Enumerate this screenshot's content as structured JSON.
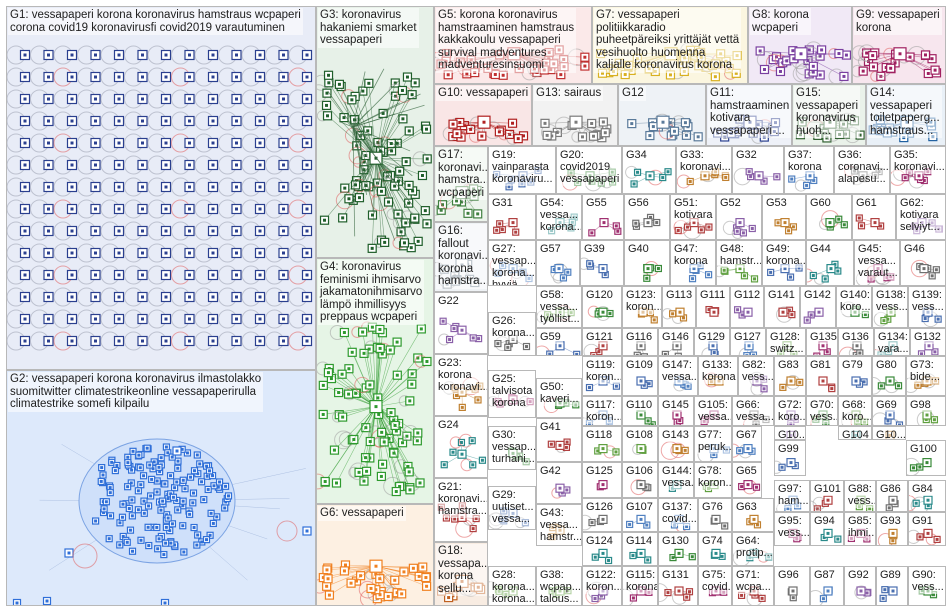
{
  "graph": {
    "background": "#ffffff",
    "box_border": "#b8b8b8",
    "edge_color": "#8a8a8a",
    "self_loop_color": "#e06060",
    "groups": [
      {
        "id": "G1",
        "label": "G1: vessapaperi korona koronavirus hamstraus wcpaperi\ncorona covid19 koronavirusfi covid2019 varautuminen",
        "color": "#2a3f8f",
        "tint": "#e8ecf7"
      },
      {
        "id": "G2",
        "label": "G2: vessapaperi korona koronavirus ilmastolakko\nsuomitwitter climatestrikeonline vessapaperirulla\nclimatestrike somefi kilpailu",
        "color": "#2f6fd8",
        "tint": "#dde9fb"
      },
      {
        "id": "G3",
        "label": "G3: koronavirus\nhakaniemi smarket\nvessapaperi",
        "color": "#1f5e2a",
        "tint": "#e7f1e8"
      },
      {
        "id": "G4",
        "label": "G4: koronavirus\nfeminismi ihmisarvo\njakamatonihmisarvo\nlämpö ihmillisyys\npreppaus wcpaperi",
        "color": "#2e9a2e",
        "tint": "#e6f5e6"
      },
      {
        "id": "G5",
        "label": "G5: korona koronavirus\nhamstraaminen hamstraus\nkakkakoulu vessapaperi\nsurvival madventures\nmadventuresinsuomi",
        "color": "#c03030",
        "tint": "#fbe9e9"
      },
      {
        "id": "G6",
        "label": "G6: vessapaperi",
        "color": "#f08020",
        "tint": "#fdf0e2"
      },
      {
        "id": "G7",
        "label": "G7: vessapaperi\npolitiikkaradio\npuheetpäreiksi yrittäjät vettä\nvesihuolto huomenna\nkaljalle koronavirus korona",
        "color": "#d8b020",
        "tint": "#fbf6e0"
      },
      {
        "id": "G8",
        "label": "G8: korona\nwcpaperi",
        "color": "#7a3fa0",
        "tint": "#f1e9f6"
      },
      {
        "id": "G9",
        "label": "G9: vessapaperi\nkorona",
        "color": "#a02060",
        "tint": "#f7e6ee"
      },
      {
        "id": "G10",
        "label": "G10: vessapaperi",
        "color": "#b02020",
        "tint": "#f9e6e6"
      },
      {
        "id": "G11",
        "label": "G11:\nhamstraaminen\nkotivara\nvessapaperi ...",
        "color": "#2a3f8f",
        "tint": "#eef1f8"
      },
      {
        "id": "G12",
        "label": "G12",
        "color": "#5a7a9a",
        "tint": "#eef2f6"
      },
      {
        "id": "G13",
        "label": "G13: sairaus",
        "color": "#7a7a7a",
        "tint": "#f2f2f2"
      },
      {
        "id": "G14",
        "label": "G14:\nvessapaperi\ntoiletpaperg...\nhamstraus...",
        "color": "#2060a0",
        "tint": "#e9f0f7"
      },
      {
        "id": "G15",
        "label": "G15:\nvessapaperi\nkoronavirus\nhuoh...",
        "color": "#306030",
        "tint": "#eaf2ea"
      },
      {
        "id": "G16",
        "label": "G16:\nfallout\nkoronavi...\nkorona\nhamstra...",
        "color": "#708090",
        "tint": "#eff2f5"
      },
      {
        "id": "G17",
        "label": "G17:\nkoronavi...\nhamstra...\nwcpaperi",
        "color": "#408040",
        "tint": "#ecf4ec"
      },
      {
        "id": "G18",
        "label": "G18:\nvessapa...\nkorona\nsellu...",
        "color": "#c06020",
        "tint": "#f8ece2"
      }
    ],
    "cells": [
      {
        "id": "G19",
        "label": "G19:\nvainparasta\nkoronaviru..."
      },
      {
        "id": "G20",
        "label": "G20:\ncovid2019\nvessapaperi"
      },
      {
        "id": "G21",
        "label": "G21:\nkoronavi...\nhamstra..."
      },
      {
        "id": "G22",
        "label": "G22"
      },
      {
        "id": "G23",
        "label": "G23:\nkorona\nkoronavi..."
      },
      {
        "id": "G24",
        "label": "G24"
      },
      {
        "id": "G25",
        "label": "G25:\ntalvisota\nkorona"
      },
      {
        "id": "G26",
        "label": "G26:\nkorona..."
      },
      {
        "id": "G27",
        "label": "G27:\nvessap...\nkorona...\nhyviä..."
      },
      {
        "id": "G28",
        "label": "G28:\nkorona...\nkorona..."
      },
      {
        "id": "G29",
        "label": "G29:\nuutiset...\nvessa..."
      },
      {
        "id": "G30",
        "label": "G30:\nvessap...\nturhani..."
      },
      {
        "id": "G31",
        "label": "G31"
      },
      {
        "id": "G32",
        "label": "G32"
      },
      {
        "id": "G33",
        "label": "G33:\nkoronavi..."
      },
      {
        "id": "G34",
        "label": "G34"
      },
      {
        "id": "G35",
        "label": "G35:\nkoronavi..."
      },
      {
        "id": "G36",
        "label": "G36:\ncoronavi...\nalapesu..."
      },
      {
        "id": "G37",
        "label": "G37:\nkorona"
      },
      {
        "id": "G38",
        "label": "G38:\nwcpap...\ntalous..."
      },
      {
        "id": "G39",
        "label": "G39"
      },
      {
        "id": "G40",
        "label": "G40"
      },
      {
        "id": "G41",
        "label": "G41"
      },
      {
        "id": "G42",
        "label": "G42"
      },
      {
        "id": "G43",
        "label": "G43:\nvessa...\nhamstr..."
      },
      {
        "id": "G44",
        "label": "G44"
      },
      {
        "id": "G45",
        "label": "G45:\nvessa...\nvaraut..."
      },
      {
        "id": "G46",
        "label": "G46"
      },
      {
        "id": "G47",
        "label": "G47:\nkorona"
      },
      {
        "id": "G48",
        "label": "G48:\nhamstr..."
      },
      {
        "id": "G49",
        "label": "G49:\nkorona..."
      },
      {
        "id": "G50",
        "label": "G50:\nkaveri..."
      },
      {
        "id": "G51",
        "label": "G51:\nkotivara"
      },
      {
        "id": "G52",
        "label": "G52"
      },
      {
        "id": "G53",
        "label": "G53"
      },
      {
        "id": "G54",
        "label": "G54:\nvessa...\nkorona..."
      },
      {
        "id": "G55",
        "label": "G55"
      },
      {
        "id": "G56",
        "label": "G56"
      },
      {
        "id": "G57",
        "label": "G57"
      },
      {
        "id": "G58",
        "label": "G58:\nvessa...\ntyöllist..."
      },
      {
        "id": "G59",
        "label": "G59"
      },
      {
        "id": "G60",
        "label": "G60"
      },
      {
        "id": "G61",
        "label": "G61"
      },
      {
        "id": "G62",
        "label": "G62:\nkotivara\nselviyt..."
      },
      {
        "id": "G63",
        "label": "G63"
      },
      {
        "id": "G64",
        "label": "G64:\nprotip..."
      },
      {
        "id": "G65",
        "label": "G65"
      },
      {
        "id": "G66",
        "label": "G66:\nvessa..."
      },
      {
        "id": "G67",
        "label": "G67"
      },
      {
        "id": "G68",
        "label": "G68:\nkoro..."
      },
      {
        "id": "G69",
        "label": "G69"
      },
      {
        "id": "G70",
        "label": "G70:\nvess..."
      },
      {
        "id": "G71",
        "label": "G71:\nwcpa..."
      },
      {
        "id": "G72",
        "label": "G72:\nkoro..."
      },
      {
        "id": "G73",
        "label": "G73:\nbide..."
      },
      {
        "id": "G74",
        "label": "G74"
      },
      {
        "id": "G75",
        "label": "G75:\ncovid..."
      },
      {
        "id": "G76",
        "label": "G76"
      },
      {
        "id": "G77",
        "label": "G77:\nperuk..."
      },
      {
        "id": "G78",
        "label": "G78:\nkoron..."
      },
      {
        "id": "G79",
        "label": "G79"
      },
      {
        "id": "G80",
        "label": "G80"
      },
      {
        "id": "G81",
        "label": "G81"
      },
      {
        "id": "G82",
        "label": "G82:\nvess..."
      },
      {
        "id": "G83",
        "label": "G83"
      },
      {
        "id": "G84",
        "label": "G84"
      },
      {
        "id": "G85",
        "label": "G85:\nihmi..."
      },
      {
        "id": "G86",
        "label": "G86"
      },
      {
        "id": "G87",
        "label": "G87"
      },
      {
        "id": "G88",
        "label": "G88:\nvess..."
      },
      {
        "id": "G89",
        "label": "G89"
      },
      {
        "id": "G90",
        "label": "G90:\nvess..."
      },
      {
        "id": "G91",
        "label": "G91"
      },
      {
        "id": "G92",
        "label": "G92"
      },
      {
        "id": "G93",
        "label": "G93"
      },
      {
        "id": "G94",
        "label": "G94"
      },
      {
        "id": "G95",
        "label": "G95:\nvess..."
      },
      {
        "id": "G96",
        "label": "G96"
      },
      {
        "id": "G97",
        "label": "G97:\nham..."
      },
      {
        "id": "G98",
        "label": "G98"
      },
      {
        "id": "G99",
        "label": "G99"
      },
      {
        "id": "G100",
        "label": "G100"
      },
      {
        "id": "G101",
        "label": "G101"
      },
      {
        "id": "G102",
        "label": "G10...\npers..."
      },
      {
        "id": "G103",
        "label": "G10...\nkoro..."
      },
      {
        "id": "G104",
        "label": "G104"
      },
      {
        "id": "G105",
        "label": "G105:\nvessa..."
      },
      {
        "id": "G106",
        "label": "G106"
      },
      {
        "id": "G107",
        "label": "G107"
      },
      {
        "id": "G108",
        "label": "G108"
      },
      {
        "id": "G109",
        "label": "G109"
      },
      {
        "id": "G110",
        "label": "G110"
      },
      {
        "id": "G111",
        "label": "G111"
      },
      {
        "id": "G112",
        "label": "G112"
      },
      {
        "id": "G113",
        "label": "G113"
      },
      {
        "id": "G114",
        "label": "G114"
      },
      {
        "id": "G115",
        "label": "G115:\nkorona"
      },
      {
        "id": "G116",
        "label": "G116"
      },
      {
        "id": "G117",
        "label": "G117:\nkoron..."
      },
      {
        "id": "G118",
        "label": "G118"
      },
      {
        "id": "G119",
        "label": "G119:\nkoron..."
      },
      {
        "id": "G120",
        "label": "G120"
      },
      {
        "id": "G121",
        "label": "G121"
      },
      {
        "id": "G122",
        "label": "G122:\nkoron..."
      },
      {
        "id": "G123",
        "label": "G123:\nkoron..."
      },
      {
        "id": "G124",
        "label": "G124"
      },
      {
        "id": "G125",
        "label": "G125"
      },
      {
        "id": "G126",
        "label": "G126"
      },
      {
        "id": "G127",
        "label": "G127"
      },
      {
        "id": "G128",
        "label": "G128:\nswitz..."
      },
      {
        "id": "G129",
        "label": "G129"
      },
      {
        "id": "G130",
        "label": "G130"
      },
      {
        "id": "G131",
        "label": "G131"
      },
      {
        "id": "G132",
        "label": "G132"
      },
      {
        "id": "G133",
        "label": "G133:\nkorona"
      },
      {
        "id": "G134",
        "label": "G134:\nvara..."
      },
      {
        "id": "G135",
        "label": "G135"
      },
      {
        "id": "G136",
        "label": "G136"
      },
      {
        "id": "G137",
        "label": "G137:\ncovid..."
      },
      {
        "id": "G138",
        "label": "G138:\nvess..."
      },
      {
        "id": "G139",
        "label": "G139:\nvess..."
      },
      {
        "id": "G140",
        "label": "G140:\nkoro..."
      },
      {
        "id": "G141",
        "label": "G141"
      },
      {
        "id": "G142",
        "label": "G142"
      },
      {
        "id": "G143",
        "label": "G143"
      },
      {
        "id": "G144",
        "label": "G144:\nvessa..."
      },
      {
        "id": "G145",
        "label": "G145"
      },
      {
        "id": "G146",
        "label": "G146"
      },
      {
        "id": "G147",
        "label": "G147:\nvessa..."
      }
    ]
  }
}
